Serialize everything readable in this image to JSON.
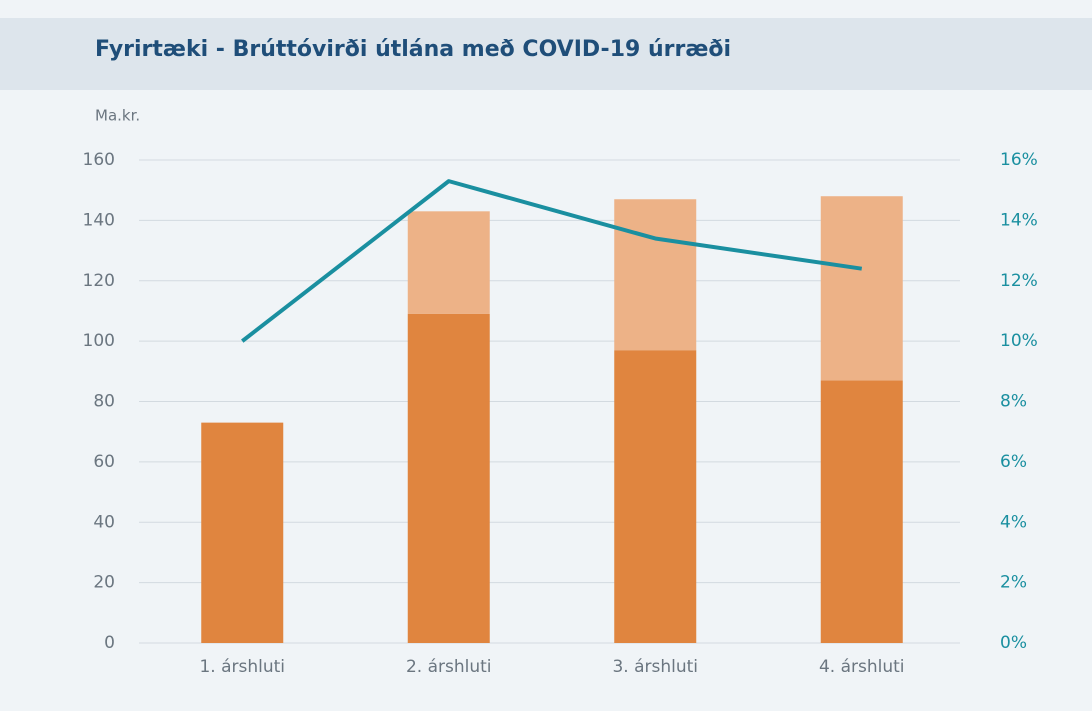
{
  "chart_data": {
    "type": "bar-line",
    "title": "Fyrirtæki - Brúttóvirði útlána með COVID-19 úrræði",
    "y_label": "Ma.kr.",
    "categories": [
      "1. árshluti",
      "2. árshluti",
      "3. árshluti",
      "4. árshluti"
    ],
    "series": [
      {
        "type": "bar",
        "color": "#e0853f",
        "values": [
          73,
          109,
          97,
          87
        ]
      },
      {
        "type": "bar",
        "color": "#edb287",
        "values": [
          0,
          34,
          50,
          61
        ]
      },
      {
        "type": "line",
        "axis": "y2",
        "color": "#1a8fa0",
        "values": [
          10,
          15.3,
          13.4,
          12.4
        ]
      }
    ],
    "stacked": true,
    "ylim": [
      0,
      160
    ],
    "yticks": [
      0,
      20,
      40,
      60,
      80,
      100,
      120,
      140,
      160
    ],
    "y2lim": [
      0,
      16
    ],
    "y2ticks": [
      {
        "value": 0,
        "label": "0%"
      },
      {
        "value": 2,
        "label": "2%"
      },
      {
        "value": 4,
        "label": "4%"
      },
      {
        "value": 6,
        "label": "6%"
      },
      {
        "value": 8,
        "label": "8%"
      },
      {
        "value": 10,
        "label": "10%"
      },
      {
        "value": 12,
        "label": "12%"
      },
      {
        "value": 14,
        "label": "14%"
      },
      {
        "value": 16,
        "label": "16%"
      }
    ],
    "grid": true
  }
}
